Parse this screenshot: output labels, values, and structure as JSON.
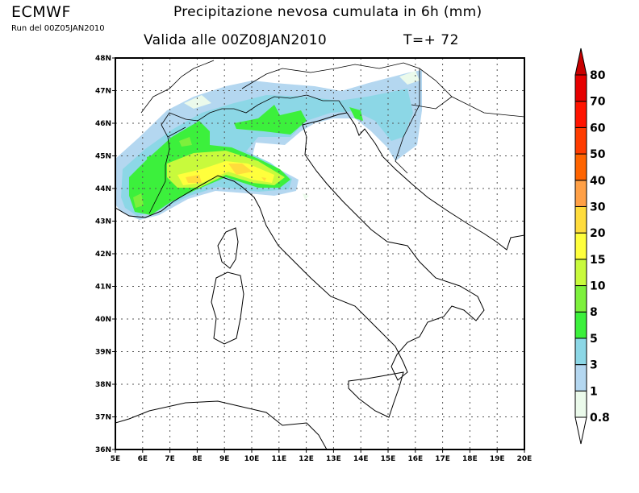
{
  "header": {
    "brand": "ECMWF",
    "run": "Run del 00Z05JAN2010",
    "title": "Precipitazione nevosa cumulata in 6h (mm)",
    "valid": "Valida alle 00Z08JAN2010",
    "step": "T=+ 72"
  },
  "map": {
    "lon_labels": [
      "5E",
      "6E",
      "7E",
      "8E",
      "9E",
      "10E",
      "11E",
      "12E",
      "13E",
      "14E",
      "15E",
      "16E",
      "17E",
      "18E",
      "19E",
      "20E"
    ],
    "lat_labels": [
      "36N",
      "37N",
      "38N",
      "39N",
      "40N",
      "41N",
      "42N",
      "43N",
      "44N",
      "45N",
      "46N",
      "47N",
      "48N"
    ],
    "lon_range": [
      5,
      20
    ],
    "lat_range": [
      36,
      48
    ],
    "grid": "dotted",
    "coastline_color": "#000000"
  },
  "colorbar": {
    "labels": [
      "0.8",
      "1",
      "3",
      "5",
      "8",
      "10",
      "15",
      "20",
      "30",
      "40",
      "50",
      "60",
      "70",
      "80"
    ],
    "colors": [
      "#ebfaeb",
      "#b4d7f0",
      "#8cd7e6",
      "#3cf03c",
      "#7df03c",
      "#c8fa3c",
      "#ffff3c",
      "#ffdc3c",
      "#ffa046",
      "#ff6400",
      "#ff3c00",
      "#ff1400",
      "#e60000"
    ],
    "over_color": "#c80000",
    "under_color": "#ffffff"
  }
}
